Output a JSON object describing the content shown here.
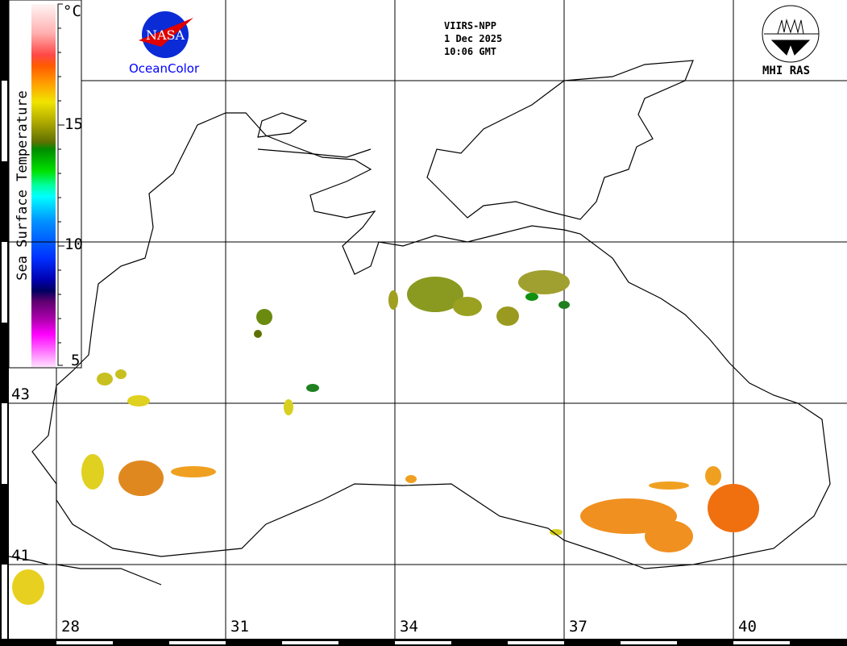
{
  "header": {
    "sensor": "VIIRS-NPP",
    "date": "1 Dec 2025",
    "time": "10:06 GMT"
  },
  "logos": {
    "left_text": "OceanColor",
    "left_emblem": "NASA",
    "right_text": "MHI RAS"
  },
  "colorbar": {
    "title": "Sea Surface Temperature",
    "unit": "°C",
    "ticks": [
      "15",
      "10",
      "5"
    ],
    "range": [
      5,
      19.5
    ]
  },
  "map": {
    "latitude_labels": [
      "43",
      "41"
    ],
    "longitude_labels": [
      "28",
      "31",
      "34",
      "37",
      "40"
    ],
    "colors": {
      "coast": "#000000",
      "grid": "#000000"
    }
  }
}
